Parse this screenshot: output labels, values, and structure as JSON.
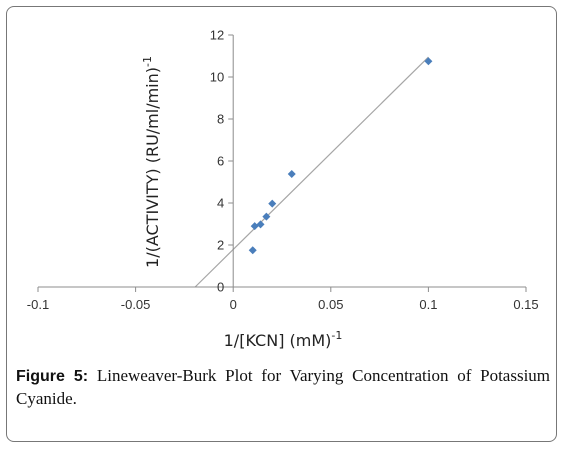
{
  "chart_data": {
    "type": "scatter",
    "title": "",
    "xlabel": "1/[KCN] (mM)-1",
    "ylabel": "1/(ACTIVITY) (RU/ml/min)-1",
    "xlabel_main": "1/[KCN] (mM)",
    "xlabel_sup": "-1",
    "ylabel_main": "1/(ACTIVITY) (RU/ml/min)",
    "ylabel_sup": "-1",
    "xlim": [
      -0.1,
      0.15
    ],
    "ylim": [
      0,
      12
    ],
    "x_ticks": [
      -0.1,
      -0.05,
      0,
      0.05,
      0.1,
      0.15
    ],
    "x_tick_labels": [
      "-0.1",
      "-0.05",
      "0",
      "0.05",
      "0.1",
      "0.15"
    ],
    "y_ticks": [
      0,
      2,
      4,
      6,
      8,
      10,
      12
    ],
    "y_tick_labels": [
      "0",
      "2",
      "4",
      "6",
      "8",
      "10",
      "12"
    ],
    "grid": false,
    "legend": "none",
    "marker_color": "#4a7ebb",
    "trendline_color": "#a6a6a6",
    "series": [
      {
        "points": [
          {
            "x": 0.01,
            "y": 1.75
          },
          {
            "x": 0.011,
            "y": 2.9
          },
          {
            "x": 0.014,
            "y": 2.98
          },
          {
            "x": 0.017,
            "y": 3.35
          },
          {
            "x": 0.02,
            "y": 3.97
          },
          {
            "x": 0.03,
            "y": 5.38
          },
          {
            "x": 0.1,
            "y": 10.75
          }
        ]
      }
    ],
    "trendline": {
      "x_start": -0.0195,
      "y_start": 0,
      "x_end": 0.1,
      "y_end": 10.95
    }
  },
  "caption": {
    "label": "Figure 5:",
    "text": "Lineweaver-Burk Plot for Varying Concentration of Potassium Cyanide."
  }
}
